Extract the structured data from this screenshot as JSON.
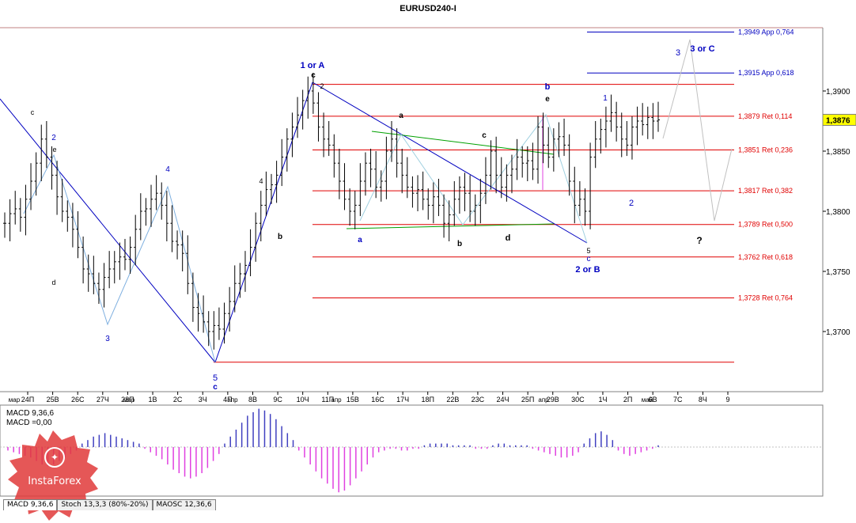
{
  "title": "EURUSD240-I",
  "price_axis": {
    "ticks": [
      "1,3900",
      "1,3850",
      "1,3800",
      "1,3750",
      "1,3700"
    ],
    "current_price": "1,3876"
  },
  "date_axis": [
    "24П",
    "25В",
    "26С",
    "27Ч",
    "28П",
    "1В",
    "2С",
    "3Ч",
    "4П",
    "8В",
    "9С",
    "10Ч",
    "11П",
    "15В",
    "16С",
    "17Ч",
    "18П",
    "22В",
    "23С",
    "24Ч",
    "25П",
    "29В",
    "30С",
    "1Ч",
    "2П",
    "6В",
    "7С",
    "8Ч",
    "9"
  ],
  "month_labels": [
    "мар",
    "мар",
    "апр",
    "апр",
    "апр",
    "май"
  ],
  "levels": [
    {
      "label": "1,3949 App 0,764",
      "price": 1.3949,
      "color": "#0000c0"
    },
    {
      "label": "1,3915 App 0,618",
      "price": 1.3915,
      "color": "#0000c0"
    },
    {
      "label": "1,3879 Ret 0,114",
      "price": 1.3879,
      "color": "#e00000"
    },
    {
      "label": "1,3851 Ret 0,236",
      "price": 1.3851,
      "color": "#e00000"
    },
    {
      "label": "1,3817 Ret 0,382",
      "price": 1.3817,
      "color": "#e00000"
    },
    {
      "label": "1,3789 Ret 0,500",
      "price": 1.3789,
      "color": "#e00000"
    },
    {
      "label": "1,3762 Ret 0,618",
      "price": 1.3762,
      "color": "#e00000"
    },
    {
      "label": "1,3728 Ret 0,764",
      "price": 1.3728,
      "color": "#e00000"
    }
  ],
  "annotations": {
    "wave_1_or_a": "1 or A",
    "wave_2_or_b": "2 or B",
    "wave_3_or_c": "3 or C",
    "question": "?"
  },
  "indicator": {
    "macd_line1": "MACD 9,36,6",
    "macd_line2": "MACD =0,00"
  },
  "tabs": [
    "MACD 9,36,6",
    "Stoch 13,3,3 (80%-20%)",
    "MAOSC 12,36,6"
  ],
  "watermark": "InstaForex",
  "colors": {
    "blue": "#0000c0",
    "red": "#e00000",
    "green": "#00a000",
    "macd_blue": "#4040c0",
    "macd_magenta": "#e040e0"
  },
  "chart_data": {
    "type": "candlestick",
    "title": "EURUSD240-I",
    "ylim": [
      1.364,
      1.3995
    ],
    "series": [
      {
        "name": "EURUSD",
        "close": [
          1.379,
          1.3798,
          1.3802,
          1.3795,
          1.381,
          1.3825,
          1.384,
          1.386,
          1.3845,
          1.383,
          1.3812,
          1.38,
          1.3795,
          1.3785,
          1.377,
          1.3752,
          1.3748,
          1.374,
          1.3735,
          1.3745,
          1.3752,
          1.3758,
          1.3762,
          1.376,
          1.377,
          1.3785,
          1.38,
          1.3802,
          1.381,
          1.3815,
          1.3805,
          1.379,
          1.3775,
          1.3772,
          1.3765,
          1.374,
          1.372,
          1.3715,
          1.3708,
          1.37,
          1.3705,
          1.3702,
          1.3715,
          1.3725,
          1.374,
          1.3748,
          1.3755,
          1.377,
          1.379,
          1.3805,
          1.3818,
          1.3822,
          1.383,
          1.3845,
          1.386,
          1.387,
          1.388,
          1.3892,
          1.39,
          1.389,
          1.387,
          1.386,
          1.3855,
          1.384,
          1.3825,
          1.381,
          1.38,
          1.3805,
          1.3825,
          1.384,
          1.3835,
          1.382,
          1.3825,
          1.385,
          1.386,
          1.384,
          1.383,
          1.382,
          1.3815,
          1.3818,
          1.381,
          1.3805,
          1.3812,
          1.3805,
          1.379,
          1.3797,
          1.381,
          1.382,
          1.3815,
          1.38,
          1.3805,
          1.3815,
          1.383,
          1.385,
          1.383,
          1.382,
          1.383,
          1.3835,
          1.3845,
          1.384,
          1.3842,
          1.3835,
          1.387,
          1.3855,
          1.3845,
          1.386,
          1.3862,
          1.3855,
          1.3825,
          1.3805,
          1.381,
          1.38,
          1.3845,
          1.386,
          1.3868,
          1.3875,
          1.3882,
          1.387,
          1.386,
          1.3855,
          1.387,
          1.3875,
          1.3872,
          1.3878,
          1.3875,
          1.3876
        ]
      }
    ],
    "macd": [
      -2,
      -3,
      -4,
      -5,
      -6,
      -8,
      -10,
      -11,
      -10,
      -8,
      -6,
      -4,
      -2,
      2,
      4,
      6,
      7,
      8,
      7,
      6,
      5,
      4,
      3,
      2,
      -1,
      -3,
      -5,
      -7,
      -10,
      -13,
      -15,
      -17,
      -18,
      -17,
      -15,
      -12,
      -8,
      -4,
      2,
      6,
      10,
      14,
      18,
      20,
      22,
      21,
      19,
      16,
      12,
      8,
      4,
      -2,
      -6,
      -10,
      -14,
      -18,
      -21,
      -24,
      -26,
      -25,
      -22,
      -18,
      -14,
      -10,
      -6,
      -3,
      -2,
      -1,
      -1,
      -2,
      -2,
      -1,
      -1,
      1,
      2,
      2,
      2,
      2,
      1,
      1,
      1,
      1,
      -1,
      -1,
      -1,
      1,
      2,
      2,
      1,
      1,
      1,
      1,
      -1,
      -2,
      -3,
      -4,
      -5,
      -6,
      -6,
      -5,
      -3,
      2,
      5,
      8,
      9,
      7,
      4,
      -2,
      -4,
      -5,
      -4,
      -3,
      -2,
      -1,
      1
    ]
  }
}
